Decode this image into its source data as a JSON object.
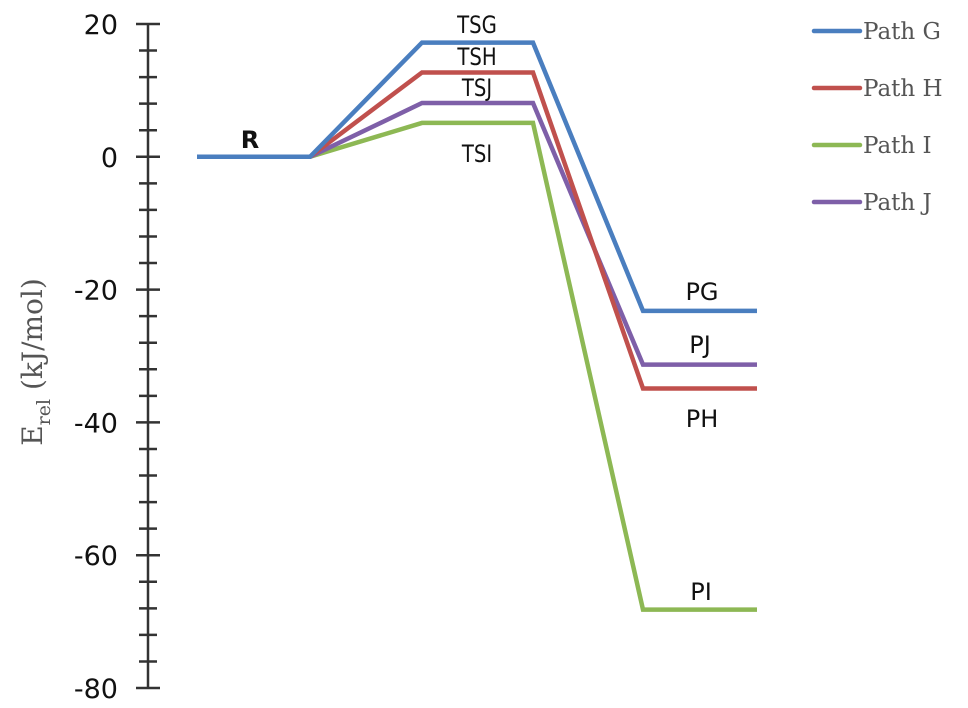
{
  "chart_data": {
    "type": "line",
    "title": "",
    "xlabel": "",
    "ylabel": "E_rel (kJ/mol)",
    "ylabel_main": "E",
    "ylabel_sub": "rel",
    "ylabel_unit": " (kJ/mol)",
    "ylim": [
      -80,
      20
    ],
    "yticks": [
      20,
      0,
      -20,
      -40,
      -60,
      -80
    ],
    "ytick_labels": [
      "20",
      "0",
      "-20",
      "-40",
      "-60",
      "-80"
    ],
    "minor_tick_step": 4,
    "grid": false,
    "legend_position": "top-right",
    "categories": [
      "R",
      "TS",
      "P"
    ],
    "series": [
      {
        "name": "Path G",
        "color": "#4a7ebf",
        "values": [
          0,
          17.2,
          -23.2
        ],
        "ts_label": "TSG",
        "p_label": "PG"
      },
      {
        "name": "Path H",
        "color": "#c0504d",
        "values": [
          0,
          12.7,
          -34.9
        ],
        "ts_label": "TSH",
        "p_label": "PH"
      },
      {
        "name": "Path I",
        "color": "#8db854",
        "values": [
          0,
          5.1,
          -68.2
        ],
        "ts_label": "TSI",
        "p_label": "PI"
      },
      {
        "name": "Path J",
        "color": "#7e5fa8",
        "values": [
          0,
          8.1,
          -31.3
        ],
        "ts_label": "TSJ",
        "p_label": "PJ"
      }
    ],
    "annotations": [
      "R",
      "TSG",
      "TSH",
      "TSJ",
      "TSI",
      "PG",
      "PJ",
      "PH",
      "PI"
    ]
  },
  "legend": {
    "items": [
      {
        "label": "Path G",
        "color": "#4a7ebf"
      },
      {
        "label": "Path H",
        "color": "#c0504d"
      },
      {
        "label": "Path I",
        "color": "#8db854"
      },
      {
        "label": "Path J",
        "color": "#7e5fa8"
      }
    ]
  }
}
